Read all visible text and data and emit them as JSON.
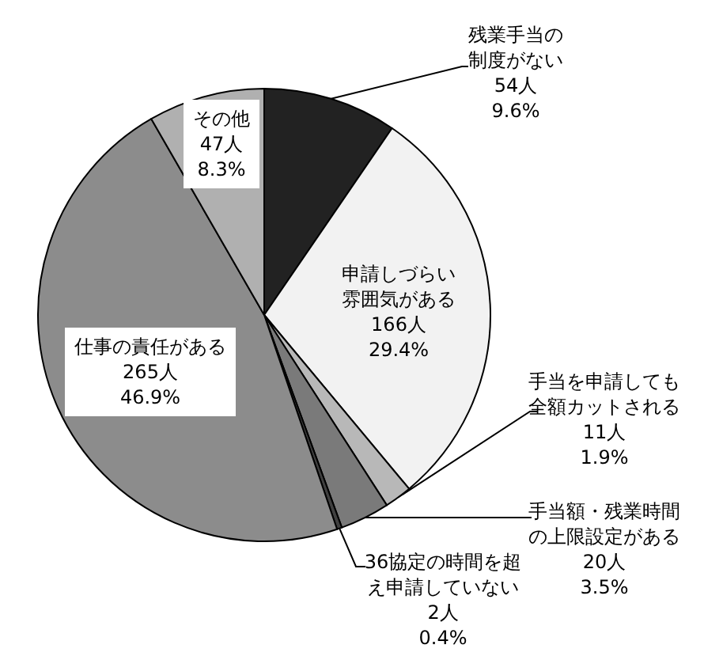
{
  "chart_data": {
    "type": "pie",
    "categories": [
      "残業手当の制度がない",
      "申請しづらい雰囲気がある",
      "手当を申請しても全額カットされる",
      "手当額・残業時間の上限設定がある",
      "36協定の時間を超え申請していない",
      "仕事の責任がある",
      "その他"
    ],
    "values": [
      54,
      166,
      11,
      20,
      2,
      265,
      47
    ],
    "colors": [
      "#222222",
      "#f2f2f2",
      "#b8b8b8",
      "#7a7a7a",
      "#404040",
      "#8c8c8c",
      "#b0b0b0"
    ],
    "value_labels": [
      "54人 9.6%",
      "166人 29.4%",
      "11人 1.9%",
      "20人 3.5%",
      "2人 0.4%",
      "265人 46.9%",
      "47人 8.3%"
    ]
  }
}
